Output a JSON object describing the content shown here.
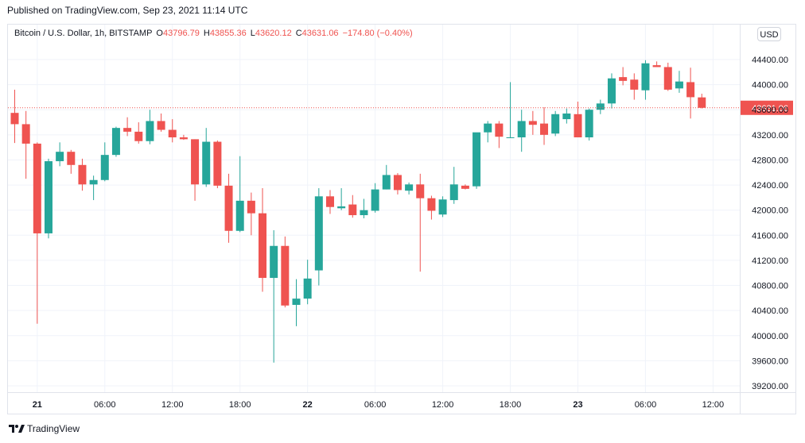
{
  "header": {
    "published_text": "Published on TradingView.com, Sep 23, 2021 11:14 UTC"
  },
  "legend": {
    "symbol": "Bitcoin / U.S. Dollar, 1h, BITSTAMP",
    "o_label": "O",
    "o_value": "43796.79",
    "h_label": "H",
    "h_value": "43855.36",
    "l_label": "L",
    "l_value": "43620.12",
    "c_label": "C",
    "c_value": "43631.06",
    "change": "−174.80 (−0.40%)"
  },
  "currency_button": "USD",
  "footer": {
    "brand": "TradingView"
  },
  "colors": {
    "up": "#26a69a",
    "down": "#ef5350",
    "grid": "#f0f3fa",
    "last_price_line": "#ef5350"
  },
  "chart_data": {
    "type": "candlestick",
    "last_price": 43631.06,
    "last_price_label": "43631.06",
    "ylim": [
      38900,
      44800
    ],
    "y_ticks": [
      "44400.00",
      "44000.00",
      "43600.00",
      "43200.00",
      "42800.00",
      "42400.00",
      "42000.00",
      "41600.00",
      "41200.00",
      "40800.00",
      "40400.00",
      "40000.00",
      "39600.00",
      "39200.00"
    ],
    "x_ticks": [
      {
        "label": "21",
        "index": 2,
        "bold": true
      },
      {
        "label": "06:00",
        "index": 8
      },
      {
        "label": "12:00",
        "index": 14
      },
      {
        "label": "18:00",
        "index": 20
      },
      {
        "label": "22",
        "index": 26,
        "bold": true
      },
      {
        "label": "06:00",
        "index": 32
      },
      {
        "label": "12:00",
        "index": 38
      },
      {
        "label": "18:00",
        "index": 44
      },
      {
        "label": "23",
        "index": 50,
        "bold": true
      },
      {
        "label": "06:00",
        "index": 56
      },
      {
        "label": "12:00",
        "index": 62
      }
    ],
    "candles": [
      {
        "o": 43550,
        "h": 43920,
        "l": 43070,
        "c": 43370
      },
      {
        "o": 43370,
        "h": 43580,
        "l": 42500,
        "c": 43060
      },
      {
        "o": 43060,
        "h": 43080,
        "l": 40190,
        "c": 41630
      },
      {
        "o": 41630,
        "h": 42820,
        "l": 41550,
        "c": 42780
      },
      {
        "o": 42780,
        "h": 43080,
        "l": 42700,
        "c": 42930
      },
      {
        "o": 42930,
        "h": 42960,
        "l": 42580,
        "c": 42720
      },
      {
        "o": 42720,
        "h": 42820,
        "l": 42310,
        "c": 42410
      },
      {
        "o": 42410,
        "h": 42550,
        "l": 42160,
        "c": 42480
      },
      {
        "o": 42480,
        "h": 43080,
        "l": 42460,
        "c": 42880
      },
      {
        "o": 42880,
        "h": 43330,
        "l": 42850,
        "c": 43310
      },
      {
        "o": 43310,
        "h": 43480,
        "l": 43180,
        "c": 43250
      },
      {
        "o": 43250,
        "h": 43400,
        "l": 43060,
        "c": 43100
      },
      {
        "o": 43100,
        "h": 43600,
        "l": 43050,
        "c": 43420
      },
      {
        "o": 43420,
        "h": 43540,
        "l": 43250,
        "c": 43280
      },
      {
        "o": 43280,
        "h": 43450,
        "l": 43080,
        "c": 43160
      },
      {
        "o": 43160,
        "h": 43200,
        "l": 43120,
        "c": 43130
      },
      {
        "o": 43130,
        "h": 43130,
        "l": 42150,
        "c": 42410
      },
      {
        "o": 42410,
        "h": 43310,
        "l": 42370,
        "c": 43090
      },
      {
        "o": 43090,
        "h": 43110,
        "l": 42350,
        "c": 42390
      },
      {
        "o": 42390,
        "h": 42580,
        "l": 41480,
        "c": 41670
      },
      {
        "o": 41670,
        "h": 42860,
        "l": 41650,
        "c": 42150
      },
      {
        "o": 42150,
        "h": 42280,
        "l": 41600,
        "c": 41950
      },
      {
        "o": 41950,
        "h": 42350,
        "l": 40700,
        "c": 40920
      },
      {
        "o": 40920,
        "h": 41680,
        "l": 39570,
        "c": 41430
      },
      {
        "o": 41430,
        "h": 41580,
        "l": 40450,
        "c": 40480
      },
      {
        "o": 40490,
        "h": 40900,
        "l": 40150,
        "c": 40590
      },
      {
        "o": 40590,
        "h": 41210,
        "l": 40500,
        "c": 40910
      },
      {
        "o": 41040,
        "h": 42350,
        "l": 40800,
        "c": 42220
      },
      {
        "o": 42220,
        "h": 42320,
        "l": 41940,
        "c": 42050
      },
      {
        "o": 42030,
        "h": 42350,
        "l": 42000,
        "c": 42060
      },
      {
        "o": 42090,
        "h": 42240,
        "l": 41880,
        "c": 41920
      },
      {
        "o": 41920,
        "h": 42180,
        "l": 41870,
        "c": 42000
      },
      {
        "o": 41990,
        "h": 42430,
        "l": 41960,
        "c": 42330
      },
      {
        "o": 42330,
        "h": 42720,
        "l": 42330,
        "c": 42560
      },
      {
        "o": 42560,
        "h": 42590,
        "l": 42250,
        "c": 42320
      },
      {
        "o": 42310,
        "h": 42440,
        "l": 42250,
        "c": 42410
      },
      {
        "o": 42410,
        "h": 42580,
        "l": 41020,
        "c": 42190
      },
      {
        "o": 42190,
        "h": 42230,
        "l": 41850,
        "c": 41990
      },
      {
        "o": 41930,
        "h": 42220,
        "l": 41890,
        "c": 42170
      },
      {
        "o": 42160,
        "h": 42690,
        "l": 42100,
        "c": 42410
      },
      {
        "o": 42390,
        "h": 42410,
        "l": 42330,
        "c": 42340
      },
      {
        "o": 42380,
        "h": 43210,
        "l": 42340,
        "c": 43240
      },
      {
        "o": 43240,
        "h": 43420,
        "l": 43080,
        "c": 43380
      },
      {
        "o": 43380,
        "h": 43420,
        "l": 42990,
        "c": 43170
      },
      {
        "o": 43160,
        "h": 44040,
        "l": 43160,
        "c": 43160
      },
      {
        "o": 43160,
        "h": 43600,
        "l": 42930,
        "c": 43420
      },
      {
        "o": 43420,
        "h": 43580,
        "l": 43200,
        "c": 43360
      },
      {
        "o": 43380,
        "h": 43640,
        "l": 43040,
        "c": 43200
      },
      {
        "o": 43220,
        "h": 43580,
        "l": 43180,
        "c": 43530
      },
      {
        "o": 43450,
        "h": 43620,
        "l": 43380,
        "c": 43540
      },
      {
        "o": 43530,
        "h": 43730,
        "l": 43180,
        "c": 43160
      },
      {
        "o": 43160,
        "h": 43620,
        "l": 43110,
        "c": 43600
      },
      {
        "o": 43600,
        "h": 43760,
        "l": 43530,
        "c": 43700
      },
      {
        "o": 43700,
        "h": 44180,
        "l": 43620,
        "c": 44100
      },
      {
        "o": 44120,
        "h": 44280,
        "l": 43990,
        "c": 44060
      },
      {
        "o": 44080,
        "h": 44180,
        "l": 43760,
        "c": 43920
      },
      {
        "o": 43910,
        "h": 44390,
        "l": 43760,
        "c": 44340
      },
      {
        "o": 44310,
        "h": 44370,
        "l": 44280,
        "c": 44280
      },
      {
        "o": 44280,
        "h": 44350,
        "l": 43900,
        "c": 43920
      },
      {
        "o": 43940,
        "h": 44220,
        "l": 43870,
        "c": 44050
      },
      {
        "o": 44040,
        "h": 44270,
        "l": 43460,
        "c": 43800
      },
      {
        "o": 43796.79,
        "h": 43855.36,
        "l": 43620.12,
        "c": 43631.06
      }
    ]
  }
}
